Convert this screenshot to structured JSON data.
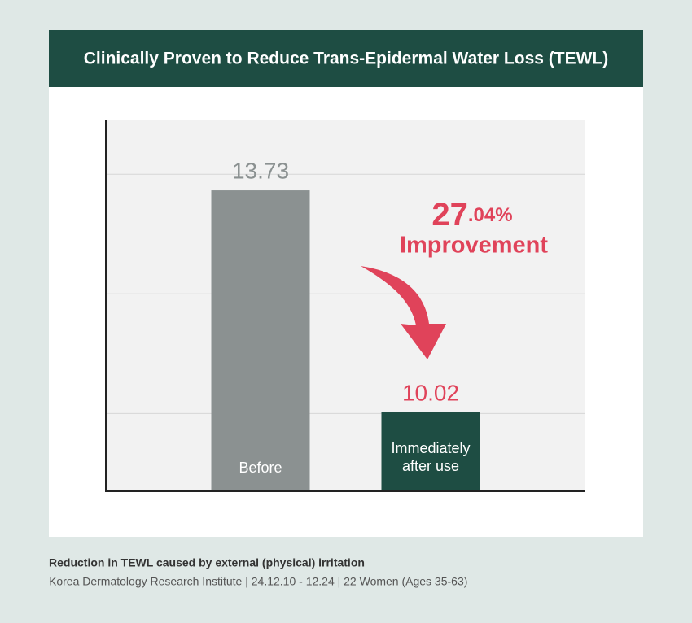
{
  "chart_data": {
    "type": "bar",
    "title": "Clinically Proven to Reduce Trans-Epidermal Water Loss (TEWL)",
    "categories": [
      "Before",
      "Immediately after use"
    ],
    "values": [
      13.73,
      10.02
    ],
    "colors": [
      "#8b9191",
      "#1e4d43"
    ],
    "value_label_colors": [
      "#8b9191",
      "#e0435a"
    ],
    "ylim": [
      8.7,
      14.9
    ],
    "grid_values": [
      10,
      12,
      14
    ],
    "grid": true,
    "annotation": {
      "value": 27.04,
      "label": "27.04%",
      "text": "Improvement",
      "color": "#e0435a"
    },
    "footnote": {
      "title": "Reduction in TEWL caused by external (physical) irritation",
      "source": "Korea Dermatology Research Institute | 24.12.10 - 12.24 | 22 Women (Ages 35-63)"
    }
  }
}
